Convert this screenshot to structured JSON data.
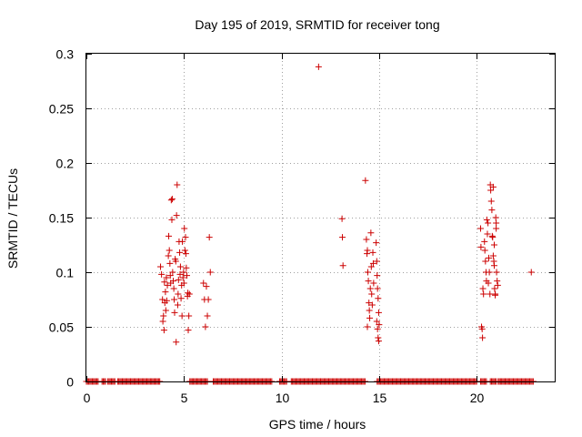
{
  "chart_data": {
    "type": "scatter",
    "title": "Day 195 of 2019, SRMTID for receiver tong",
    "xlabel": "GPS time / hours",
    "ylabel": "SRMTID / TECUs",
    "xlim": [
      0,
      24
    ],
    "ylim": [
      0,
      0.3
    ],
    "grid": true,
    "marker": "+",
    "marker_color": "#cc0000",
    "xticks": [
      0,
      5,
      10,
      15,
      20
    ],
    "xtick_labels": [
      "0",
      "5",
      "10",
      "15",
      "20"
    ],
    "yticks": [
      0,
      0.05,
      0.1,
      0.15,
      0.2,
      0.25,
      0.3
    ],
    "ytick_labels": [
      "0",
      "0.05",
      "0.1",
      "0.15",
      "0.2",
      "0.25",
      "0.3"
    ],
    "zero_ranges": [
      [
        0.0,
        0.6
      ],
      [
        0.8,
        1.0
      ],
      [
        1.1,
        1.5
      ],
      [
        1.6,
        3.8
      ],
      [
        5.3,
        6.2
      ],
      [
        6.5,
        9.5
      ],
      [
        9.9,
        10.3
      ],
      [
        10.5,
        14.3
      ],
      [
        14.9,
        20.0
      ],
      [
        20.2,
        20.5
      ],
      [
        20.7,
        21.0
      ],
      [
        21.1,
        22.9
      ]
    ],
    "zero_spacing": 0.06,
    "series": [
      {
        "name": "SRMTID",
        "points": [
          [
            3.8,
            0.105
          ],
          [
            3.85,
            0.098
          ],
          [
            3.9,
            0.075
          ],
          [
            3.95,
            0.06
          ],
          [
            3.92,
            0.055
          ],
          [
            4.0,
            0.091
          ],
          [
            4.02,
            0.072
          ],
          [
            4.05,
            0.082
          ],
          [
            3.98,
            0.047
          ],
          [
            4.07,
            0.065
          ],
          [
            4.1,
            0.095
          ],
          [
            4.12,
            0.074
          ],
          [
            4.15,
            0.088
          ],
          [
            4.2,
            0.115
          ],
          [
            4.22,
            0.133
          ],
          [
            4.25,
            0.12
          ],
          [
            4.28,
            0.108
          ],
          [
            4.3,
            0.097
          ],
          [
            4.32,
            0.09
          ],
          [
            4.35,
            0.166
          ],
          [
            4.4,
            0.167
          ],
          [
            4.38,
            0.148
          ],
          [
            4.42,
            0.1
          ],
          [
            4.45,
            0.092
          ],
          [
            4.48,
            0.085
          ],
          [
            4.5,
            0.075
          ],
          [
            4.52,
            0.063
          ],
          [
            4.55,
            0.112
          ],
          [
            4.58,
            0.11
          ],
          [
            4.6,
            0.036
          ],
          [
            4.62,
            0.152
          ],
          [
            4.65,
            0.18
          ],
          [
            4.68,
            0.07
          ],
          [
            4.7,
            0.08
          ],
          [
            4.72,
            0.093
          ],
          [
            4.75,
            0.128
          ],
          [
            4.78,
            0.118
          ],
          [
            4.8,
            0.098
          ],
          [
            4.82,
            0.105
          ],
          [
            4.85,
            0.076
          ],
          [
            4.88,
            0.088
          ],
          [
            4.9,
            0.06
          ],
          [
            4.92,
            0.128
          ],
          [
            4.95,
            0.095
          ],
          [
            4.98,
            0.1
          ],
          [
            5.0,
            0.09
          ],
          [
            5.02,
            0.14
          ],
          [
            5.05,
            0.12
          ],
          [
            5.08,
            0.132
          ],
          [
            5.1,
            0.117
          ],
          [
            5.12,
            0.104
          ],
          [
            5.15,
            0.097
          ],
          [
            5.18,
            0.078
          ],
          [
            5.2,
            0.081
          ],
          [
            5.22,
            0.047
          ],
          [
            5.25,
            0.06
          ],
          [
            5.28,
            0.08
          ],
          [
            6.0,
            0.09
          ],
          [
            6.05,
            0.075
          ],
          [
            6.1,
            0.05
          ],
          [
            6.15,
            0.087
          ],
          [
            6.2,
            0.06
          ],
          [
            6.3,
            0.132
          ],
          [
            6.35,
            0.1
          ],
          [
            6.25,
            0.075
          ],
          [
            11.9,
            0.288
          ],
          [
            13.1,
            0.149
          ],
          [
            13.12,
            0.132
          ],
          [
            13.15,
            0.106
          ],
          [
            14.3,
            0.184
          ],
          [
            14.35,
            0.13
          ],
          [
            14.38,
            0.117
          ],
          [
            14.4,
            0.12
          ],
          [
            14.42,
            0.1
          ],
          [
            14.45,
            0.092
          ],
          [
            14.48,
            0.072
          ],
          [
            14.5,
            0.065
          ],
          [
            14.52,
            0.058
          ],
          [
            14.55,
            0.085
          ],
          [
            14.58,
            0.136
          ],
          [
            14.6,
            0.105
          ],
          [
            14.62,
            0.08
          ],
          [
            14.65,
            0.07
          ],
          [
            14.4,
            0.05
          ],
          [
            14.68,
            0.118
          ],
          [
            14.7,
            0.108
          ],
          [
            14.72,
            0.09
          ],
          [
            14.85,
            0.127
          ],
          [
            14.88,
            0.11
          ],
          [
            14.9,
            0.097
          ],
          [
            14.92,
            0.085
          ],
          [
            14.95,
            0.076
          ],
          [
            14.98,
            0.063
          ],
          [
            14.88,
            0.055
          ],
          [
            14.92,
            0.048
          ],
          [
            14.95,
            0.04
          ],
          [
            14.98,
            0.037
          ],
          [
            15.0,
            0.052
          ],
          [
            20.2,
            0.14
          ],
          [
            20.22,
            0.123
          ],
          [
            20.25,
            0.05
          ],
          [
            20.28,
            0.048
          ],
          [
            20.3,
            0.04
          ],
          [
            20.32,
            0.085
          ],
          [
            20.35,
            0.08
          ],
          [
            20.4,
            0.128
          ],
          [
            20.42,
            0.12
          ],
          [
            20.45,
            0.11
          ],
          [
            20.48,
            0.1
          ],
          [
            20.5,
            0.092
          ],
          [
            20.52,
            0.148
          ],
          [
            20.55,
            0.135
          ],
          [
            20.58,
            0.145
          ],
          [
            20.6,
            0.09
          ],
          [
            20.62,
            0.113
          ],
          [
            20.65,
            0.1
          ],
          [
            20.68,
            0.08
          ],
          [
            20.7,
            0.18
          ],
          [
            20.72,
            0.175
          ],
          [
            20.75,
            0.165
          ],
          [
            20.78,
            0.157
          ],
          [
            20.8,
            0.133
          ],
          [
            20.82,
            0.132
          ],
          [
            20.85,
            0.115
          ],
          [
            20.88,
            0.11
          ],
          [
            20.9,
            0.106
          ],
          [
            20.92,
            0.085
          ],
          [
            20.95,
            0.08
          ],
          [
            20.98,
            0.15
          ],
          [
            21.0,
            0.14
          ],
          [
            21.02,
            0.1
          ],
          [
            21.05,
            0.092
          ],
          [
            21.08,
            0.088
          ],
          [
            20.85,
            0.178
          ],
          [
            20.9,
            0.125
          ],
          [
            21.0,
            0.145
          ],
          [
            20.95,
            0.079
          ],
          [
            22.8,
            0.1
          ]
        ]
      }
    ]
  }
}
